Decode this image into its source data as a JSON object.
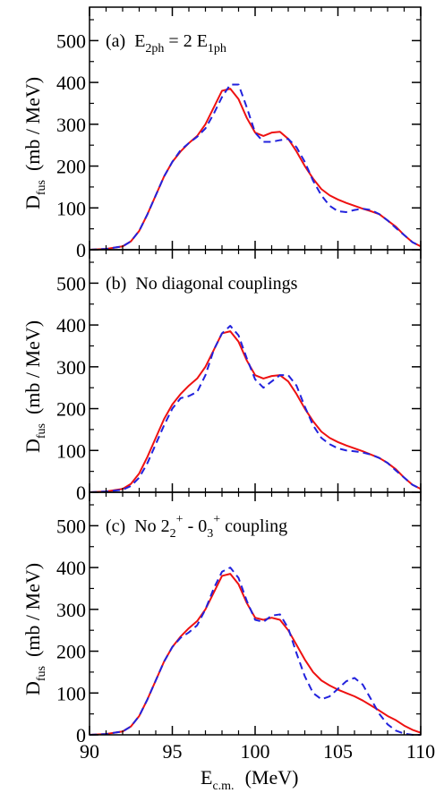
{
  "figure": {
    "x_axis_label": "E",
    "x_axis_label_sub": "c.m.",
    "x_axis_label_unit": "(MeV)",
    "y_axis_label": "D",
    "y_axis_label_sub": "fus",
    "y_axis_label_unit": "(mb / MeV)"
  },
  "chart_data": [
    {
      "type": "line",
      "panel_label": "(a)",
      "caption": {
        "prefix": "E",
        "sub1": "2ph",
        "mid": " = 2 E",
        "sub2": "1ph",
        "text": "E2ph = 2 E1ph"
      },
      "xlim": [
        90,
        110
      ],
      "ylim": [
        0,
        580
      ],
      "x_ticks": [
        90,
        95,
        100,
        105,
        110
      ],
      "y_ticks": [
        0,
        100,
        200,
        300,
        400,
        500
      ],
      "y_tick_labels": [
        "0",
        "100",
        "200",
        "300",
        "400",
        "500"
      ],
      "series": [
        {
          "color": "#ee1111",
          "style": "solid",
          "x": [
            90,
            91,
            92,
            92.5,
            93,
            93.5,
            94,
            94.5,
            95,
            95.5,
            96,
            96.5,
            97,
            97.5,
            98,
            98.5,
            99,
            99.5,
            100,
            100.5,
            101,
            101.5,
            102,
            102.5,
            103,
            103.5,
            104,
            104.5,
            105,
            105.5,
            106,
            106.5,
            107,
            107.5,
            108,
            108.5,
            109,
            109.5,
            110
          ],
          "y": [
            0,
            2,
            8,
            20,
            45,
            85,
            130,
            175,
            210,
            235,
            255,
            272,
            300,
            340,
            380,
            385,
            360,
            315,
            280,
            272,
            280,
            282,
            265,
            235,
            200,
            170,
            145,
            130,
            120,
            112,
            105,
            98,
            92,
            85,
            70,
            55,
            35,
            18,
            8
          ]
        },
        {
          "color": "#2222dd",
          "style": "dashed",
          "x": [
            90,
            91,
            92,
            92.5,
            93,
            93.5,
            94,
            94.5,
            95,
            95.5,
            96,
            96.5,
            97,
            97.5,
            98,
            98.5,
            99,
            99.5,
            100,
            100.5,
            101,
            101.5,
            102,
            102.5,
            103,
            103.5,
            104,
            104.5,
            105,
            105.5,
            106,
            106.5,
            107,
            107.5,
            108,
            108.5,
            109,
            109.5,
            110
          ],
          "y": [
            0,
            2,
            8,
            20,
            45,
            85,
            130,
            175,
            210,
            238,
            255,
            270,
            290,
            325,
            365,
            395,
            395,
            340,
            280,
            258,
            258,
            262,
            265,
            245,
            210,
            165,
            130,
            105,
            92,
            90,
            95,
            98,
            95,
            85,
            70,
            52,
            35,
            18,
            8
          ]
        }
      ]
    },
    {
      "type": "line",
      "panel_label": "(b)",
      "caption": {
        "text": "No diagonal couplings"
      },
      "xlim": [
        90,
        110
      ],
      "ylim": [
        0,
        580
      ],
      "x_ticks": [
        90,
        95,
        100,
        105,
        110
      ],
      "y_ticks": [
        0,
        100,
        200,
        300,
        400,
        500
      ],
      "y_tick_labels": [
        "0",
        "100",
        "200",
        "300",
        "400",
        "500"
      ],
      "series": [
        {
          "color": "#ee1111",
          "style": "solid",
          "x": [
            90,
            91,
            92,
            92.5,
            93,
            93.5,
            94,
            94.5,
            95,
            95.5,
            96,
            96.5,
            97,
            97.5,
            98,
            98.5,
            99,
            99.5,
            100,
            100.5,
            101,
            101.5,
            102,
            102.5,
            103,
            103.5,
            104,
            104.5,
            105,
            105.5,
            106,
            106.5,
            107,
            107.5,
            108,
            108.5,
            109,
            109.5,
            110
          ],
          "y": [
            0,
            2,
            8,
            20,
            45,
            85,
            130,
            175,
            210,
            235,
            255,
            272,
            300,
            340,
            380,
            385,
            360,
            315,
            280,
            272,
            278,
            280,
            265,
            235,
            200,
            170,
            145,
            130,
            120,
            112,
            105,
            98,
            90,
            82,
            70,
            55,
            35,
            18,
            8
          ]
        },
        {
          "color": "#2222dd",
          "style": "dashed",
          "x": [
            90,
            91,
            92,
            92.5,
            93,
            93.5,
            94,
            94.5,
            95,
            95.5,
            96,
            96.5,
            97,
            97.5,
            98,
            98.5,
            99,
            99.5,
            100,
            100.5,
            101,
            101.5,
            102,
            102.5,
            103,
            103.5,
            104,
            104.5,
            105,
            105.5,
            106,
            106.5,
            107,
            107.5,
            108,
            108.5,
            109,
            109.5,
            110
          ],
          "y": [
            0,
            2,
            6,
            15,
            35,
            70,
            115,
            160,
            200,
            225,
            230,
            240,
            280,
            340,
            380,
            398,
            375,
            320,
            270,
            250,
            265,
            280,
            280,
            255,
            205,
            160,
            130,
            115,
            105,
            100,
            98,
            95,
            90,
            82,
            70,
            52,
            35,
            18,
            8
          ]
        }
      ]
    },
    {
      "type": "line",
      "panel_label": "(c)",
      "caption": {
        "prefix": "No 2",
        "sub1": "2",
        "sup1": "+",
        "mid": " - 0",
        "sub2": "3",
        "sup2": "+",
        "suffix": " coupling",
        "text": "No 22+ - 03+ coupling"
      },
      "xlim": [
        90,
        110
      ],
      "ylim": [
        0,
        580
      ],
      "x_ticks": [
        90,
        95,
        100,
        105,
        110
      ],
      "x_tick_labels": [
        "90",
        "95",
        "100",
        "105",
        "110"
      ],
      "y_ticks": [
        0,
        100,
        200,
        300,
        400,
        500
      ],
      "y_tick_labels": [
        "0",
        "100",
        "200",
        "300",
        "400",
        "500"
      ],
      "series": [
        {
          "color": "#ee1111",
          "style": "solid",
          "x": [
            90,
            91,
            92,
            92.5,
            93,
            93.5,
            94,
            94.5,
            95,
            95.5,
            96,
            96.5,
            97,
            97.5,
            98,
            98.5,
            99,
            99.5,
            100,
            100.5,
            101,
            101.5,
            102,
            102.5,
            103,
            103.5,
            104,
            104.5,
            105,
            105.5,
            106,
            106.5,
            107,
            107.5,
            108,
            108.5,
            109,
            109.5,
            110
          ],
          "y": [
            0,
            2,
            8,
            20,
            45,
            85,
            130,
            175,
            210,
            235,
            255,
            272,
            300,
            340,
            380,
            385,
            360,
            315,
            280,
            275,
            280,
            275,
            250,
            215,
            180,
            150,
            130,
            118,
            108,
            100,
            92,
            82,
            70,
            58,
            45,
            35,
            22,
            12,
            5
          ]
        },
        {
          "color": "#2222dd",
          "style": "dashed",
          "x": [
            90,
            91,
            92,
            92.5,
            93,
            93.5,
            94,
            94.5,
            95,
            95.5,
            96,
            96.5,
            97,
            97.5,
            98,
            98.5,
            99,
            99.5,
            100,
            100.5,
            101,
            101.5,
            102,
            102.5,
            103,
            103.5,
            104,
            104.5,
            105,
            105.5,
            106,
            106.5,
            107,
            107.5,
            108,
            108.5,
            109,
            109.5,
            110
          ],
          "y": [
            0,
            2,
            8,
            20,
            45,
            85,
            130,
            175,
            210,
            232,
            245,
            262,
            300,
            350,
            390,
            400,
            375,
            320,
            275,
            270,
            285,
            288,
            255,
            195,
            140,
            100,
            85,
            92,
            110,
            128,
            136,
            120,
            85,
            50,
            25,
            10,
            3,
            0,
            0
          ]
        }
      ]
    }
  ]
}
